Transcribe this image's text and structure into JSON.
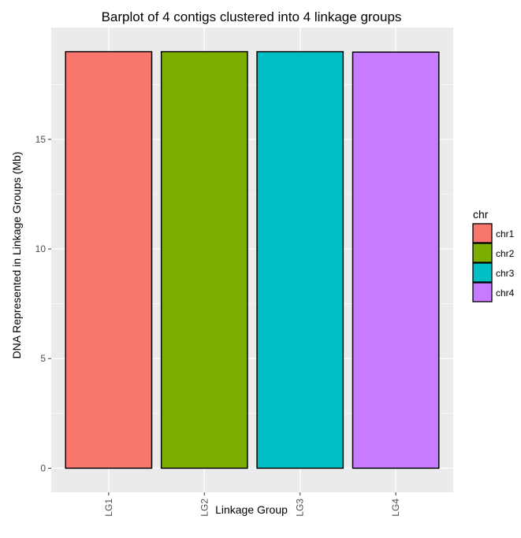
{
  "chart_data": {
    "type": "bar",
    "title": "Barplot of 4 contigs clustered into 4 linkage groups",
    "xlabel": "Linkage Group",
    "ylabel": "DNA Represented in Linkage Groups (Mb)",
    "categories": [
      "LG1",
      "LG2",
      "LG3",
      "LG4"
    ],
    "values": [
      19.0,
      19.0,
      19.0,
      18.98
    ],
    "bar_series": [
      "chr1",
      "chr2",
      "chr3",
      "chr4"
    ],
    "yticks": [
      0,
      5,
      10,
      15
    ],
    "ylim": [
      -1.1,
      20.1
    ],
    "grid": true,
    "legend": {
      "title": "chr",
      "position": "right",
      "entries": [
        {
          "label": "chr1",
          "color": "#F8766D"
        },
        {
          "label": "chr2",
          "color": "#7CAE00"
        },
        {
          "label": "chr3",
          "color": "#00BFC4"
        },
        {
          "label": "chr4",
          "color": "#C77CFF"
        }
      ]
    },
    "colors": {
      "chr1": "#F8766D",
      "chr2": "#7CAE00",
      "chr3": "#00BFC4",
      "chr4": "#C77CFF",
      "panel_background": "#EBEBEB",
      "grid": "#FFFFFF",
      "bar_outline": "#000000"
    }
  }
}
